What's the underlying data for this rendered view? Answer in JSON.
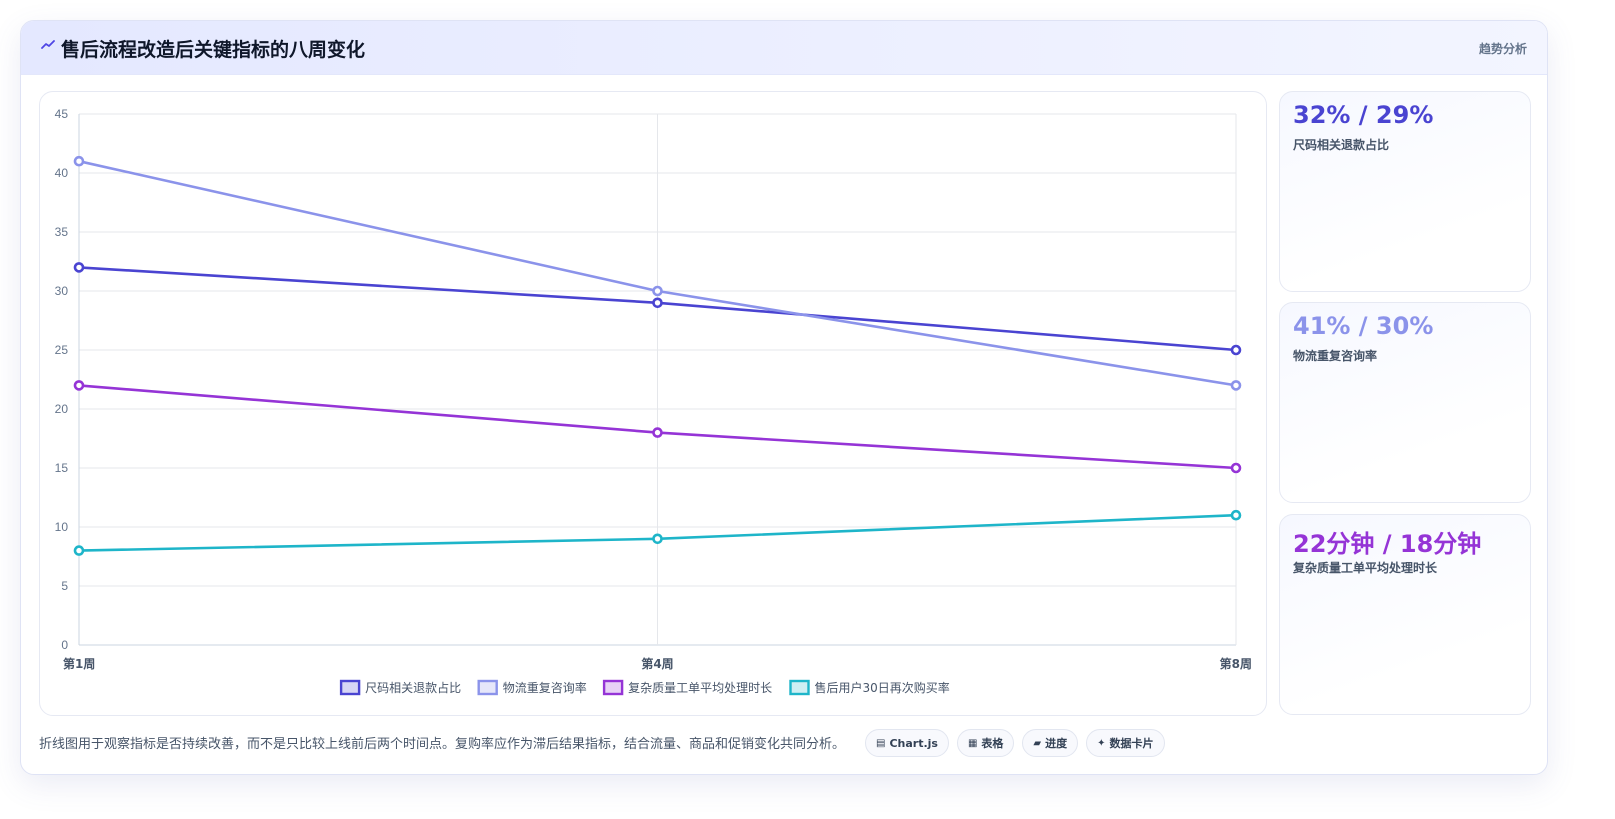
{
  "header": {
    "title": "售后流程改造后关键指标的八周变化",
    "tag": "趋势分析"
  },
  "colors": {
    "accent": "#4f46e5",
    "series": [
      "#4a44d1",
      "#8b93ea",
      "#9534d6",
      "#1eb5c9"
    ]
  },
  "kpis": [
    {
      "value": "32% / 29%",
      "label": "尺码相关退款占比",
      "color": "#4a44d1"
    },
    {
      "value": "41% / 30%",
      "label": "物流重复咨询率",
      "color": "#8b93ea"
    },
    {
      "value": "22分钟 / 18分钟",
      "label": "复杂质量工单平均处理时长",
      "color": "#9534d6"
    }
  ],
  "footer": {
    "note": "折线图用于观察指标是否持续改善，而不是只比较上线前后两个时间点。复购率应作为滞后结果指标，结合流量、商品和促销变化共同分析。",
    "chips": [
      {
        "icon": "chart-icon",
        "glyph": "▤",
        "label": "Chart.js"
      },
      {
        "icon": "table-icon",
        "glyph": "▦",
        "label": "表格"
      },
      {
        "icon": "progress-icon",
        "glyph": "▰",
        "label": "进度"
      },
      {
        "icon": "sparkle-icon",
        "glyph": "✦",
        "label": "数据卡片"
      }
    ]
  },
  "chart_data": {
    "type": "line",
    "categories": [
      "第1周",
      "第4周",
      "第8周"
    ],
    "ylim": [
      0,
      45
    ],
    "yticks": [
      0,
      5,
      10,
      15,
      20,
      25,
      30,
      35,
      40,
      45
    ],
    "grid": true,
    "legend_position": "bottom",
    "series": [
      {
        "name": "尺码相关退款占比",
        "values": [
          32,
          29,
          25
        ],
        "color": "#4a44d1"
      },
      {
        "name": "物流重复咨询率",
        "values": [
          41,
          30,
          22
        ],
        "color": "#8b93ea"
      },
      {
        "name": "复杂质量工单平均处理时长",
        "values": [
          22,
          18,
          15
        ],
        "color": "#9534d6"
      },
      {
        "name": "售后用户30日再次购买率",
        "values": [
          8,
          9,
          11
        ],
        "color": "#1eb5c9"
      }
    ]
  }
}
